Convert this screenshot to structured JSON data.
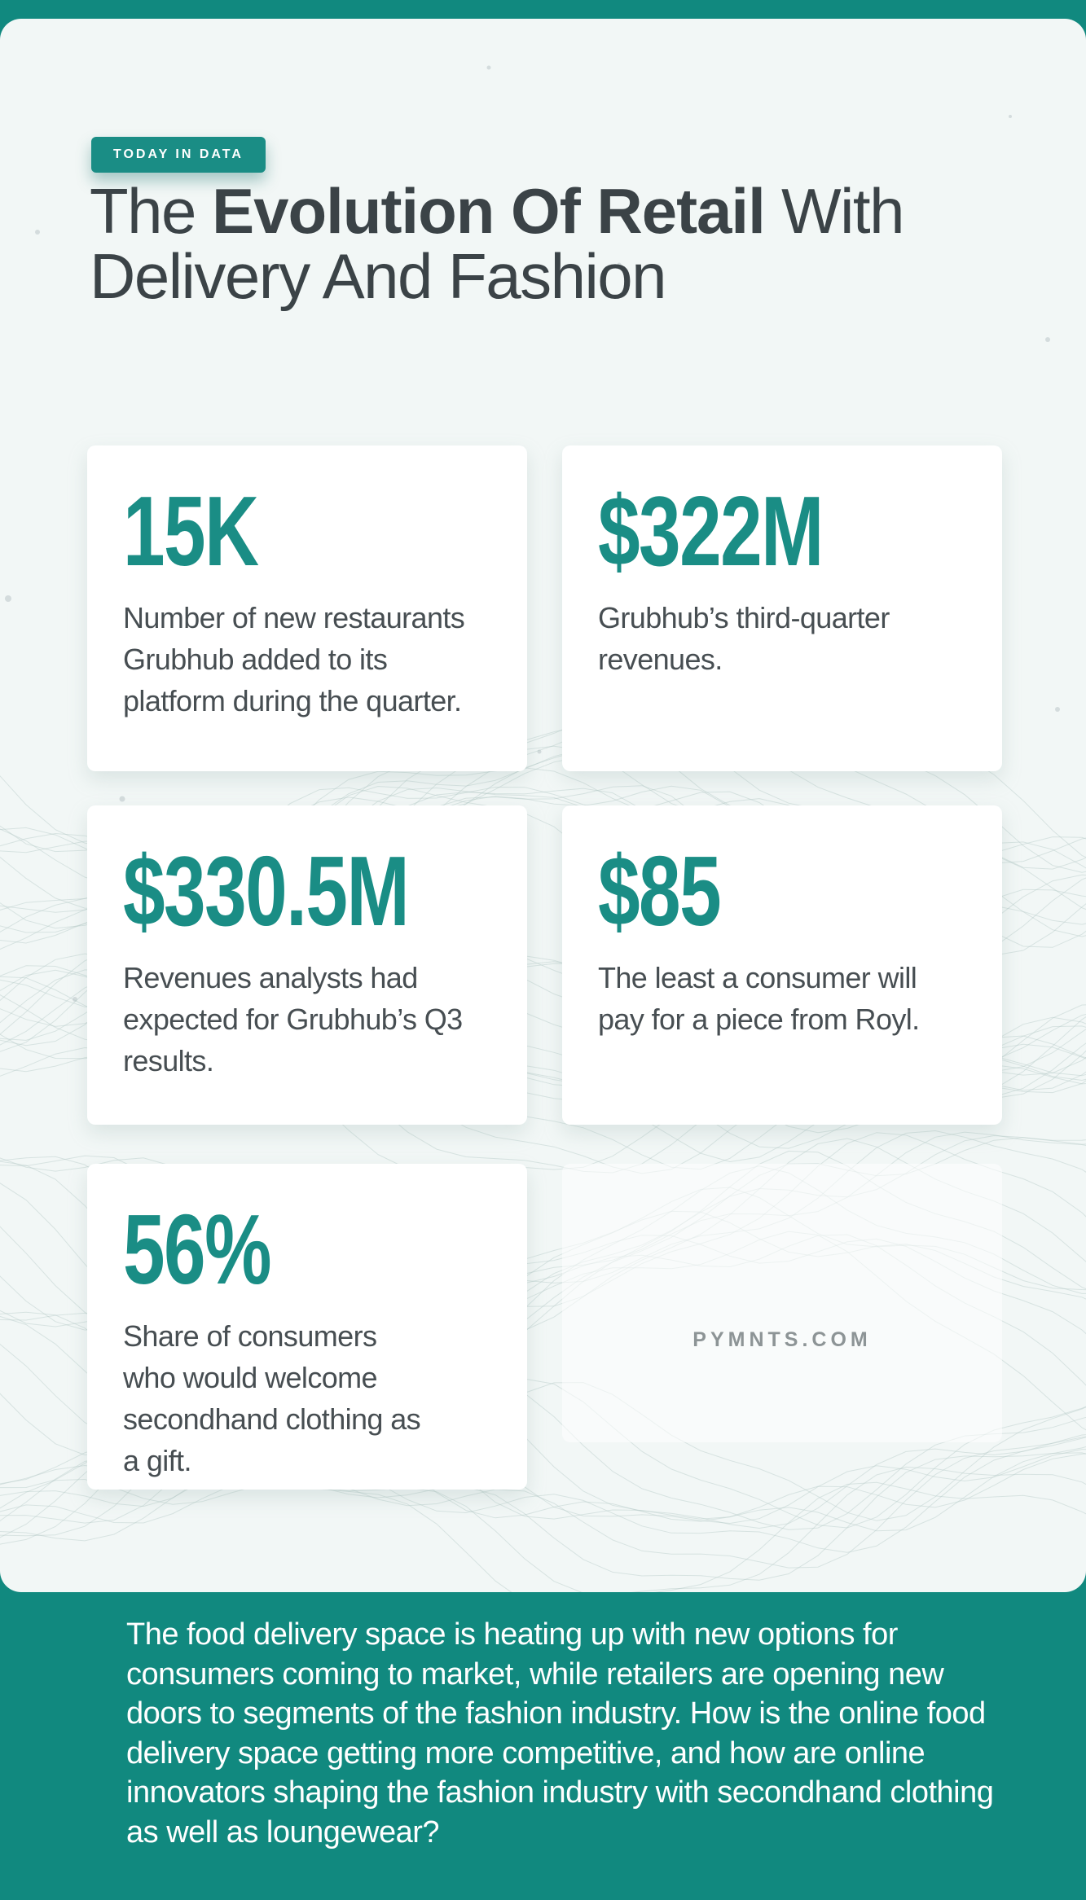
{
  "colors": {
    "teal_background": "#11897f",
    "accent_teal": "#1a8d85",
    "title_text": "#3b4347",
    "body_text": "#474e52",
    "panel_background": "#f2f7f6",
    "card_background": "#ffffff",
    "watermark_text": "#8d9496",
    "footer_text": "#ffffff"
  },
  "header": {
    "badge": "TODAY IN DATA",
    "title": {
      "pre": "The ",
      "bold": "Evolution Of Retail",
      "post": " With",
      "line2": "Delivery And Fashion"
    }
  },
  "stats": [
    {
      "value": "15K",
      "description": "Number of new restaurants Grubhub added to its platform during the quarter."
    },
    {
      "value": "$322M",
      "description": "Grubhub’s third-quarter revenues."
    },
    {
      "value": "$330.5M",
      "description": "Revenues analysts had expected for Grubhub’s Q3 results."
    },
    {
      "value": "$85",
      "description": "The least a consumer will pay for a piece from Royl."
    },
    {
      "value": "56%",
      "description": "Share of consumers who would welcome secondhand clothing as a gift."
    }
  ],
  "watermark": "PYMNTS.COM",
  "footer": {
    "paragraph": "The food delivery space is heating up with new options for consumers coming to market, while retailers are opening new doors to segments of the fashion industry. How is the online food delivery space getting more competitive, and how are online innovators shaping the fashion industry with secondhand clothing as well as loungewear?"
  }
}
